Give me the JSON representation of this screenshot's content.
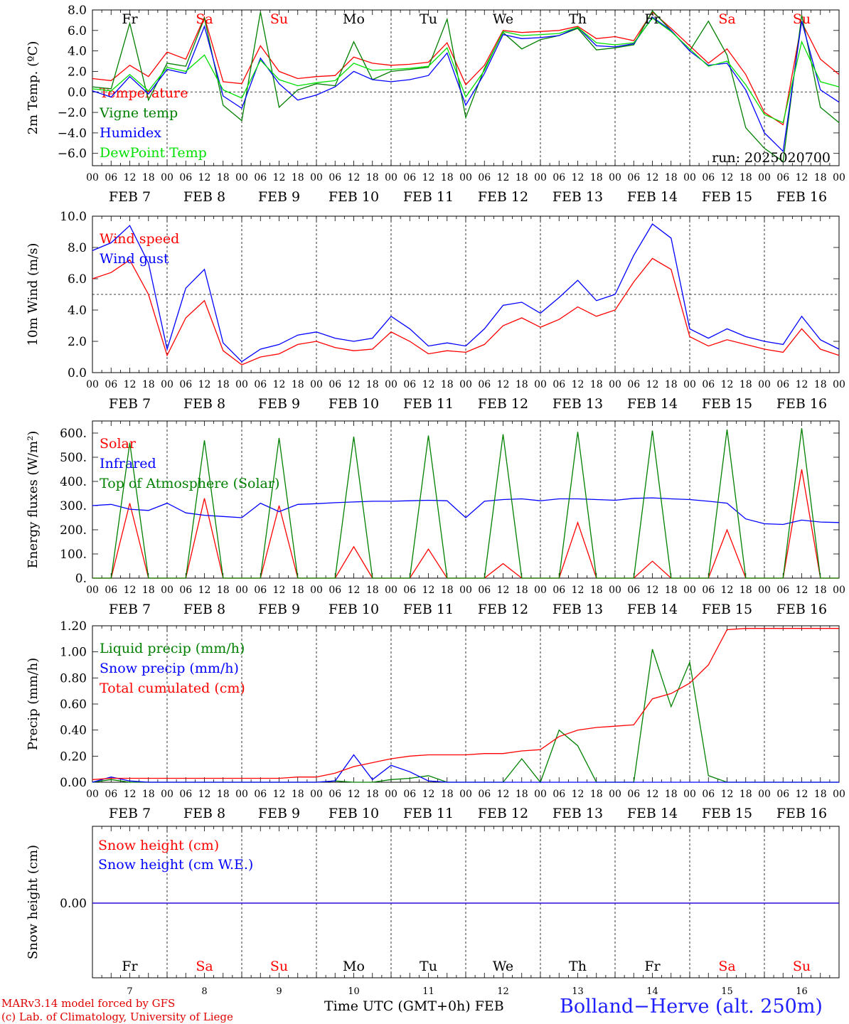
{
  "chart_data": [
    {
      "type": "line",
      "id": "temp",
      "ylabel": "2m Temp. (ºC)",
      "ylim": [
        -7.2,
        8.0
      ],
      "yticks": [
        -6.0,
        -4.0,
        -2.0,
        0.0,
        2.0,
        4.0,
        6.0,
        8.0
      ],
      "ytick_labels": [
        "−6.0",
        "−4.0",
        "−2.0",
        "0.0",
        "2.0",
        "4.0",
        "6.0",
        "8.0"
      ],
      "ref_line": 0.0,
      "annotation": "run: 2025020700",
      "x_hours": [
        0,
        6,
        12,
        18,
        24,
        30,
        36,
        42,
        48,
        54,
        60,
        66,
        72,
        78,
        84,
        90,
        96,
        102,
        108,
        114,
        120,
        126,
        132,
        138,
        144,
        150,
        156,
        162,
        168,
        174,
        180,
        186,
        192,
        198,
        204,
        210,
        216,
        222,
        228,
        234,
        240
      ],
      "series": [
        {
          "name": "Temperature",
          "color": "#ff0000",
          "values": [
            1.3,
            1.1,
            2.6,
            1.5,
            3.9,
            3.2,
            7.3,
            1.0,
            0.8,
            4.5,
            2.0,
            1.3,
            1.5,
            1.6,
            3.4,
            2.8,
            2.6,
            2.7,
            2.9,
            4.8,
            0.7,
            2.6,
            6.0,
            5.8,
            5.9,
            6.0,
            6.4,
            5.2,
            5.4,
            5.0,
            7.8,
            6.2,
            4.5,
            2.8,
            4.2,
            1.7,
            -2.0,
            -3.2,
            6.8,
            3.2,
            1.7
          ]
        },
        {
          "name": "Vigne temp",
          "color": "#008000",
          "values": [
            0.5,
            0.3,
            6.7,
            -0.8,
            2.8,
            2.5,
            7.2,
            -1.3,
            -2.8,
            7.8,
            -1.5,
            0.2,
            0.8,
            0.6,
            4.9,
            1.2,
            2.0,
            2.2,
            2.4,
            7.1,
            -2.5,
            2.3,
            5.8,
            4.2,
            5.1,
            5.5,
            6.2,
            4.1,
            4.3,
            4.6,
            7.9,
            6.0,
            4.0,
            6.9,
            3.6,
            -3.5,
            -5.5,
            -6.8,
            7.5,
            -1.5,
            -3.0
          ]
        },
        {
          "name": "Humidex",
          "color": "#0000ff",
          "values": [
            0.1,
            -0.5,
            1.5,
            -0.2,
            2.2,
            1.8,
            6.4,
            -0.4,
            -1.6,
            3.3,
            0.8,
            -0.8,
            -0.3,
            0.5,
            2.0,
            1.2,
            1.0,
            1.2,
            1.6,
            3.8,
            -1.3,
            1.8,
            5.6,
            5.2,
            5.3,
            5.5,
            6.3,
            4.5,
            4.4,
            4.7,
            7.3,
            6.0,
            4.0,
            2.6,
            2.8,
            0.2,
            -4.0,
            -5.8,
            6.9,
            0.2,
            -1.0
          ]
        },
        {
          "name": "DewPoint Temp",
          "color": "#00e000",
          "values": [
            0.3,
            0.1,
            1.7,
            0.1,
            2.4,
            2.0,
            3.6,
            0.2,
            -0.6,
            3.1,
            1.2,
            0.6,
            0.9,
            1.1,
            2.8,
            2.1,
            2.2,
            2.3,
            2.5,
            4.3,
            -0.5,
            2.1,
            5.9,
            5.5,
            5.6,
            5.7,
            6.3,
            4.8,
            4.6,
            4.8,
            7.2,
            5.9,
            4.2,
            2.5,
            3.0,
            0.7,
            -2.2,
            -3.0,
            4.9,
            1.0,
            0.5
          ]
        }
      ]
    },
    {
      "type": "line",
      "id": "wind",
      "ylabel": "10m Wind (m/s)",
      "ylim": [
        0.0,
        10.0
      ],
      "yticks": [
        0.0,
        2.0,
        4.0,
        6.0,
        8.0,
        10.0
      ],
      "ytick_labels": [
        "0.0",
        "2.0",
        "4.0",
        "6.0",
        "8.0",
        "10.0"
      ],
      "ref_line": 5.0,
      "x_hours": [
        0,
        6,
        12,
        18,
        24,
        30,
        36,
        42,
        48,
        54,
        60,
        66,
        72,
        78,
        84,
        90,
        96,
        102,
        108,
        114,
        120,
        126,
        132,
        138,
        144,
        150,
        156,
        162,
        168,
        174,
        180,
        186,
        192,
        198,
        204,
        210,
        216,
        222,
        228,
        234,
        240
      ],
      "series": [
        {
          "name": "Wind speed",
          "color": "#ff0000",
          "values": [
            6.0,
            6.4,
            7.2,
            5.0,
            1.1,
            3.5,
            4.6,
            1.4,
            0.5,
            1.0,
            1.2,
            1.8,
            2.0,
            1.6,
            1.4,
            1.5,
            2.6,
            2.0,
            1.2,
            1.4,
            1.3,
            1.8,
            3.0,
            3.5,
            2.9,
            3.4,
            4.2,
            3.6,
            4.0,
            5.8,
            7.3,
            6.6,
            2.3,
            1.7,
            2.1,
            1.8,
            1.5,
            1.3,
            2.8,
            1.5,
            1.1
          ]
        },
        {
          "name": "Wind gust",
          "color": "#0000ff",
          "values": [
            7.8,
            8.3,
            9.4,
            7.0,
            1.5,
            5.4,
            6.6,
            1.9,
            0.7,
            1.5,
            1.8,
            2.4,
            2.6,
            2.2,
            2.0,
            2.2,
            3.6,
            2.8,
            1.7,
            1.9,
            1.7,
            2.8,
            4.3,
            4.5,
            3.8,
            4.8,
            5.9,
            4.6,
            5.0,
            7.5,
            9.5,
            8.6,
            2.8,
            2.2,
            2.8,
            2.3,
            2.0,
            1.8,
            3.6,
            2.1,
            1.5
          ]
        }
      ]
    },
    {
      "type": "line",
      "id": "energy",
      "ylabel": "Energy fluxes (W/m²)",
      "ylim": [
        0,
        650
      ],
      "yticks": [
        0,
        100,
        200,
        300,
        400,
        500,
        600
      ],
      "ytick_labels": [
        "0.",
        "100.",
        "200.",
        "300.",
        "400.",
        "500.",
        "600."
      ],
      "x_hours": [
        0,
        6,
        12,
        18,
        24,
        30,
        36,
        42,
        48,
        54,
        60,
        66,
        72,
        78,
        84,
        90,
        96,
        102,
        108,
        114,
        120,
        126,
        132,
        138,
        144,
        150,
        156,
        162,
        168,
        174,
        180,
        186,
        192,
        198,
        204,
        210,
        216,
        222,
        228,
        234,
        240
      ],
      "series": [
        {
          "name": "Solar",
          "color": "#ff0000",
          "values": [
            0,
            0,
            310,
            0,
            0,
            0,
            330,
            0,
            0,
            0,
            300,
            0,
            0,
            0,
            130,
            0,
            0,
            0,
            120,
            0,
            0,
            0,
            60,
            0,
            0,
            0,
            230,
            0,
            0,
            0,
            70,
            0,
            0,
            0,
            200,
            0,
            0,
            0,
            450,
            0,
            0
          ]
        },
        {
          "name": "Infrared",
          "color": "#0000ff",
          "values": [
            300,
            305,
            285,
            280,
            310,
            270,
            260,
            255,
            250,
            310,
            275,
            305,
            308,
            312,
            315,
            318,
            318,
            320,
            322,
            320,
            250,
            318,
            325,
            328,
            320,
            328,
            328,
            325,
            322,
            330,
            332,
            328,
            325,
            318,
            310,
            245,
            225,
            222,
            240,
            232,
            230
          ]
        },
        {
          "name": "Top of Atmosphere (Solar)",
          "color": "#008000",
          "values": [
            0,
            0,
            560,
            0,
            0,
            0,
            570,
            0,
            0,
            0,
            580,
            0,
            0,
            0,
            585,
            0,
            0,
            0,
            590,
            0,
            0,
            0,
            595,
            0,
            0,
            0,
            605,
            0,
            0,
            0,
            610,
            0,
            0,
            0,
            615,
            0,
            0,
            0,
            620,
            0,
            0
          ]
        }
      ]
    },
    {
      "type": "line",
      "id": "precip",
      "ylabel": "Precip (mm/h)",
      "ylim": [
        0.0,
        1.2
      ],
      "yticks": [
        0.0,
        0.2,
        0.4,
        0.6,
        0.8,
        1.0,
        1.2
      ],
      "ytick_labels": [
        "0.00",
        "0.20",
        "0.40",
        "0.60",
        "0.80",
        "1.00",
        "1.20"
      ],
      "x_hours": [
        0,
        6,
        12,
        18,
        24,
        30,
        36,
        42,
        48,
        54,
        60,
        66,
        72,
        78,
        84,
        90,
        96,
        102,
        108,
        114,
        120,
        126,
        132,
        138,
        144,
        150,
        156,
        162,
        168,
        174,
        180,
        186,
        192,
        198,
        204,
        210,
        216,
        222,
        228,
        234,
        240
      ],
      "series": [
        {
          "name": "Liquid precip (mm/h)",
          "color": "#008000",
          "values": [
            0,
            0.02,
            0,
            0,
            0,
            0,
            0,
            0,
            0,
            0,
            0,
            0,
            0,
            0.01,
            0,
            0,
            0.02,
            0.03,
            0.05,
            0,
            0,
            0,
            0,
            0.18,
            0,
            0.4,
            0.28,
            0,
            0,
            0,
            1.02,
            0.58,
            0.92,
            0.05,
            0,
            0,
            0,
            0,
            0,
            0,
            0
          ]
        },
        {
          "name": "Snow precip (mm/h)",
          "color": "#0000ff",
          "values": [
            0,
            0.04,
            0.01,
            0,
            0,
            0,
            0,
            0,
            0,
            0,
            0,
            0,
            0,
            0.01,
            0.21,
            0.02,
            0.13,
            0.08,
            0.01,
            0,
            0,
            0,
            0,
            0,
            0,
            0,
            0,
            0,
            0,
            0,
            0,
            0,
            0,
            0,
            0,
            0,
            0,
            0,
            0,
            0,
            0
          ]
        },
        {
          "name": "Total cumulated (cm)",
          "color": "#ff0000",
          "values": [
            0.02,
            0.03,
            0.03,
            0.03,
            0.03,
            0.03,
            0.03,
            0.03,
            0.03,
            0.03,
            0.03,
            0.04,
            0.04,
            0.07,
            0.12,
            0.15,
            0.18,
            0.2,
            0.21,
            0.21,
            0.21,
            0.22,
            0.22,
            0.24,
            0.25,
            0.35,
            0.4,
            0.42,
            0.43,
            0.44,
            0.64,
            0.68,
            0.76,
            0.9,
            1.17,
            1.18,
            1.18,
            1.18,
            1.18,
            1.18,
            1.18
          ]
        }
      ]
    },
    {
      "type": "line",
      "id": "snow",
      "ylabel": "Snow height (cm)",
      "yticks": [
        0.0
      ],
      "ytick_labels": [
        "0.00"
      ],
      "x_hours": [
        0,
        240
      ],
      "series": [
        {
          "name": "Snow height (cm)",
          "color": "#ff0000",
          "values": [
            0,
            0
          ]
        },
        {
          "name": "Snow height (cm W.E.)",
          "color": "#0000ff",
          "values": [
            0,
            0
          ]
        }
      ]
    }
  ],
  "axis": {
    "hour_labels": [
      "00",
      "06",
      "12",
      "18"
    ],
    "final_hour_label": "00",
    "date_labels": [
      "FEB  7",
      "FEB  8",
      "FEB  9",
      "FEB 10",
      "FEB 11",
      "FEB 12",
      "FEB 13",
      "FEB 14",
      "FEB 15",
      "FEB 16"
    ],
    "day_abbrs": [
      {
        "text": "Fr",
        "color": "#000000"
      },
      {
        "text": "Sa",
        "color": "#ff0000"
      },
      {
        "text": "Su",
        "color": "#ff0000"
      },
      {
        "text": "Mo",
        "color": "#000000"
      },
      {
        "text": "Tu",
        "color": "#000000"
      },
      {
        "text": "We",
        "color": "#000000"
      },
      {
        "text": "Th",
        "color": "#000000"
      },
      {
        "text": "Fr",
        "color": "#000000"
      },
      {
        "text": "Sa",
        "color": "#ff0000"
      },
      {
        "text": "Su",
        "color": "#ff0000"
      }
    ],
    "day_numbers": [
      "7",
      "8",
      "9",
      "10",
      "11",
      "12",
      "13",
      "14",
      "15",
      "16"
    ]
  },
  "footer": {
    "model": "MARv3.14 model forced by GFS",
    "credit": "(c) Lab. of Climatology, University of Liege",
    "xlabel": "Time UTC (GMT+0h) FEB",
    "location": "Bolland−Herve (alt. 250m)"
  }
}
